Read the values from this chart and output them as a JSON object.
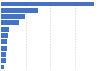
{
  "values": [
    55.0,
    22.0,
    14.0,
    10.5,
    5.0,
    4.2,
    3.8,
    3.5,
    3.2,
    2.8,
    2.0
  ],
  "bar_color": "#4472C4",
  "background_color": "#ffffff",
  "grid_color": "#d0d0d0",
  "xlim": [
    0,
    58
  ]
}
